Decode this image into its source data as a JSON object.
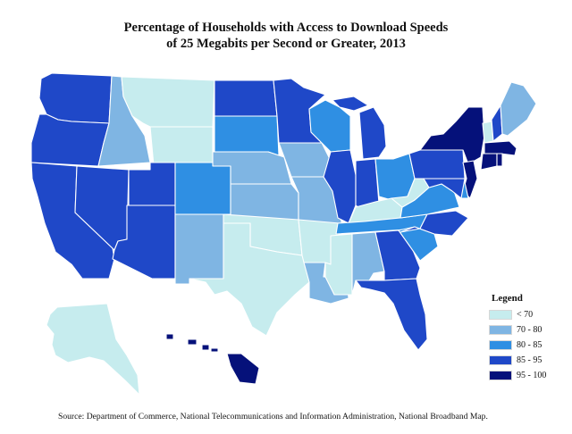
{
  "title_line1": "Percentage of Households with Access to Download Speeds",
  "title_line2": "of 25 Megabits per Second or Greater, 2013",
  "legend": {
    "title": "Legend",
    "items": [
      {
        "label": "< 70",
        "color": "#c6ecee"
      },
      {
        "label": "70 - 80",
        "color": "#7fb5e3"
      },
      {
        "label": "80 - 85",
        "color": "#2f8fe3"
      },
      {
        "label": "85 - 95",
        "color": "#1f48c8"
      },
      {
        "label": "95 - 100",
        "color": "#05117a"
      }
    ]
  },
  "source": "Source: Department of Commerce, National Telecommunications and Information Administration, National Broadband Map.",
  "states": [
    {
      "id": "WA",
      "bin": 3
    },
    {
      "id": "OR",
      "bin": 3
    },
    {
      "id": "CA",
      "bin": 3
    },
    {
      "id": "NV",
      "bin": 3
    },
    {
      "id": "ID",
      "bin": 1
    },
    {
      "id": "MT",
      "bin": 0
    },
    {
      "id": "WY",
      "bin": 0
    },
    {
      "id": "UT",
      "bin": 3
    },
    {
      "id": "AZ",
      "bin": 3
    },
    {
      "id": "CO",
      "bin": 2
    },
    {
      "id": "NM",
      "bin": 1
    },
    {
      "id": "ND",
      "bin": 3
    },
    {
      "id": "SD",
      "bin": 2
    },
    {
      "id": "NE",
      "bin": 1
    },
    {
      "id": "KS",
      "bin": 1
    },
    {
      "id": "OK",
      "bin": 0
    },
    {
      "id": "TX",
      "bin": 0
    },
    {
      "id": "MN",
      "bin": 3
    },
    {
      "id": "IA",
      "bin": 1
    },
    {
      "id": "MO",
      "bin": 1
    },
    {
      "id": "AR",
      "bin": 0
    },
    {
      "id": "LA",
      "bin": 1
    },
    {
      "id": "WI",
      "bin": 2
    },
    {
      "id": "IL",
      "bin": 3
    },
    {
      "id": "MI",
      "bin": 3
    },
    {
      "id": "IN",
      "bin": 3
    },
    {
      "id": "OH",
      "bin": 2
    },
    {
      "id": "KY",
      "bin": 0
    },
    {
      "id": "TN",
      "bin": 2
    },
    {
      "id": "MS",
      "bin": 0
    },
    {
      "id": "AL",
      "bin": 1
    },
    {
      "id": "GA",
      "bin": 3
    },
    {
      "id": "FL",
      "bin": 3
    },
    {
      "id": "SC",
      "bin": 2
    },
    {
      "id": "NC",
      "bin": 3
    },
    {
      "id": "VA",
      "bin": 2
    },
    {
      "id": "WV",
      "bin": 0
    },
    {
      "id": "PA",
      "bin": 3
    },
    {
      "id": "NY",
      "bin": 4
    },
    {
      "id": "VT",
      "bin": 0
    },
    {
      "id": "NH",
      "bin": 3
    },
    {
      "id": "ME",
      "bin": 1
    },
    {
      "id": "MA",
      "bin": 4
    },
    {
      "id": "CT",
      "bin": 4
    },
    {
      "id": "RI",
      "bin": 4
    },
    {
      "id": "NJ",
      "bin": 4
    },
    {
      "id": "DE",
      "bin": 2
    },
    {
      "id": "MD",
      "bin": 3
    },
    {
      "id": "AK",
      "bin": 0
    },
    {
      "id": "HI",
      "bin": 4
    }
  ]
}
